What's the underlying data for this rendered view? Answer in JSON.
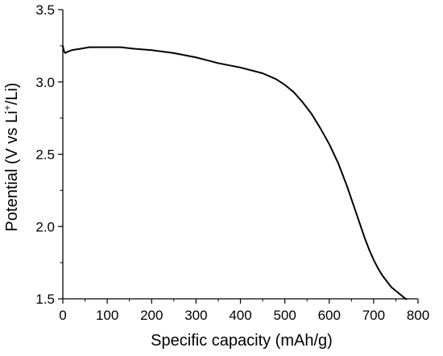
{
  "chart_data": {
    "type": "line",
    "xlabel": "Specific capacity (mAh/g)",
    "ylabel": {
      "prefix": "Potential (V vs Li",
      "sup": "+",
      "suffix": "/Li)"
    },
    "xlim": [
      0,
      800
    ],
    "ylim": [
      1.5,
      3.5
    ],
    "xticks": [
      "0",
      "100",
      "200",
      "300",
      "400",
      "500",
      "600",
      "700",
      "800"
    ],
    "yticks": [
      "1.5",
      "2.0",
      "2.5",
      "3.0",
      "3.5"
    ],
    "grid": false,
    "series": [
      {
        "color": "#000000",
        "x": [
          0,
          2,
          4,
          6,
          8,
          12,
          20,
          40,
          60,
          80,
          100,
          130,
          160,
          200,
          250,
          300,
          350,
          400,
          450,
          480,
          500,
          520,
          540,
          560,
          580,
          600,
          620,
          640,
          650,
          660,
          670,
          680,
          690,
          700,
          710,
          720,
          730,
          740,
          750,
          760,
          770,
          775
        ],
        "y": [
          3.25,
          3.22,
          3.205,
          3.2,
          3.205,
          3.21,
          3.22,
          3.23,
          3.24,
          3.24,
          3.24,
          3.24,
          3.23,
          3.22,
          3.2,
          3.17,
          3.13,
          3.1,
          3.06,
          3.02,
          2.98,
          2.93,
          2.86,
          2.78,
          2.68,
          2.57,
          2.44,
          2.28,
          2.19,
          2.1,
          2.01,
          1.92,
          1.84,
          1.77,
          1.71,
          1.66,
          1.62,
          1.58,
          1.555,
          1.53,
          1.505,
          1.495
        ]
      }
    ]
  }
}
